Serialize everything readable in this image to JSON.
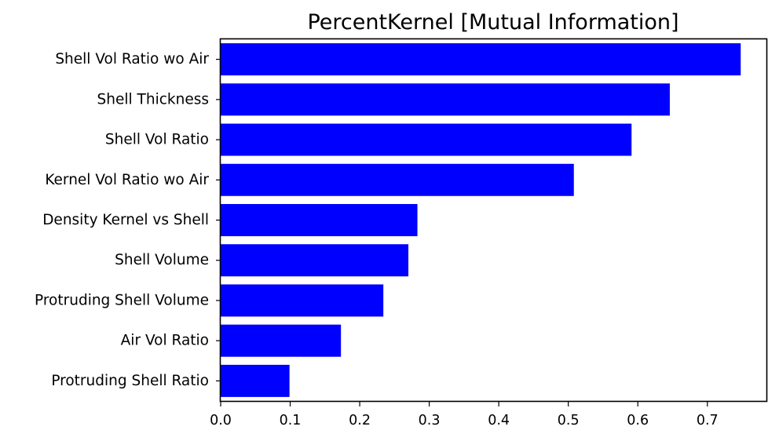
{
  "chart_data": {
    "type": "bar",
    "orientation": "horizontal",
    "title": "PercentKernel [Mutual Information]",
    "xlabel": "",
    "ylabel": "",
    "bar_color": "#0000ff",
    "categories": [
      "Shell Vol Ratio wo Air",
      "Shell Thickness",
      "Shell Vol Ratio",
      "Kernel Vol Ratio wo Air",
      "Density Kernel vs Shell",
      "Shell Volume",
      "Protruding Shell Volume",
      "Air Vol Ratio",
      "Protruding Shell Ratio"
    ],
    "values": [
      0.748,
      0.646,
      0.591,
      0.508,
      0.283,
      0.27,
      0.234,
      0.173,
      0.099
    ],
    "xlim": [
      0.0,
      0.785
    ],
    "xticks": [
      "0.0",
      "0.1",
      "0.2",
      "0.3",
      "0.4",
      "0.5",
      "0.6",
      "0.7"
    ],
    "grid": false
  }
}
